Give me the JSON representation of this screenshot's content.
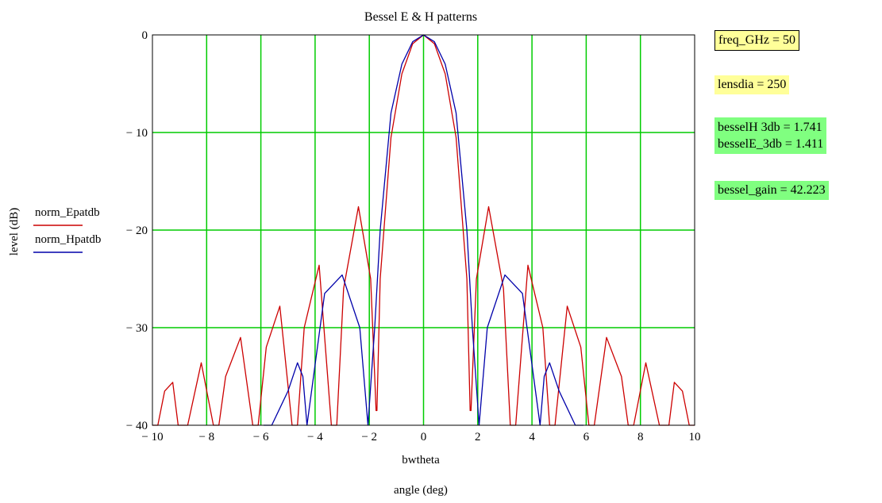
{
  "chart_data": {
    "type": "line",
    "title": "Bessel E & H  patterns",
    "xlabel": "bwtheta",
    "xlabel_secondary": "angle (deg)",
    "ylabel": "level (dB)",
    "xlim": [
      -10,
      10
    ],
    "ylim": [
      -40,
      0
    ],
    "xticks": [
      -10,
      -8,
      -6,
      -4,
      -2,
      0,
      2,
      4,
      6,
      8,
      10
    ],
    "yticks": [
      0,
      -10,
      -20,
      -30,
      -40
    ],
    "xtick_labels": [
      "− 10",
      "− 8",
      "− 6",
      "− 4",
      "− 2",
      "0",
      "2",
      "4",
      "6",
      "8",
      "10"
    ],
    "ytick_labels": [
      "0",
      "− 10",
      "− 20",
      "− 30",
      "− 40"
    ],
    "grid": true,
    "grid_color": "#00cc00",
    "legend_position": "left",
    "series": [
      {
        "name": "norm_Epatdb",
        "color": "#cc0000",
        "x": [
          -10,
          -9.8,
          -9.55,
          -9.25,
          -9.05,
          -8.7,
          -8.2,
          -7.75,
          -7.55,
          -7.3,
          -6.75,
          -6.3,
          -6.1,
          -5.8,
          -5.3,
          -4.85,
          -4.65,
          -4.4,
          -3.85,
          -3.4,
          -3.2,
          -2.95,
          -2.4,
          -1.95,
          -1.8,
          -1.75,
          -1.72,
          -1.6,
          -1.2,
          -0.8,
          -0.4,
          0,
          0.4,
          0.8,
          1.2,
          1.6,
          1.72,
          1.75,
          1.8,
          1.95,
          2.4,
          2.95,
          3.2,
          3.4,
          3.85,
          4.4,
          4.65,
          4.85,
          5.3,
          5.8,
          6.1,
          6.3,
          6.75,
          7.3,
          7.55,
          7.75,
          8.2,
          8.7,
          9.05,
          9.25,
          9.55,
          9.8,
          10
        ],
        "y": [
          -40,
          -40,
          -36.5,
          -35.6,
          -40,
          -40,
          -33.6,
          -40,
          -40,
          -35,
          -31.0,
          -40,
          -40,
          -32,
          -27.8,
          -40,
          -40,
          -30,
          -23.6,
          -40,
          -40,
          -26,
          -17.6,
          -25,
          -35,
          -38.5,
          -38.5,
          -25,
          -10.5,
          -4.0,
          -0.9,
          0,
          -0.9,
          -4.0,
          -10.5,
          -25,
          -38.5,
          -38.5,
          -35,
          -25,
          -17.6,
          -26,
          -40,
          -40,
          -23.6,
          -30,
          -40,
          -40,
          -27.8,
          -32,
          -40,
          -40,
          -31.0,
          -35,
          -40,
          -40,
          -33.6,
          -40,
          -40,
          -35.6,
          -36.5,
          -40,
          -40
        ]
      },
      {
        "name": "norm_Hpatdb",
        "color": "#0000aa",
        "x": [
          -5.9,
          -5.6,
          -5.0,
          -4.65,
          -4.45,
          -4.3,
          -3.65,
          -3.0,
          -2.35,
          -2.05,
          -1.8,
          -1.6,
          -1.2,
          -0.8,
          -0.4,
          0,
          0.4,
          0.8,
          1.2,
          1.6,
          1.8,
          2.05,
          2.35,
          3.0,
          3.65,
          4.3,
          4.45,
          4.65,
          5.0,
          5.6,
          5.9
        ],
        "y": [
          -40,
          -40,
          -36.5,
          -33.6,
          -35,
          -40,
          -26.5,
          -24.6,
          -30,
          -40,
          -30,
          -20,
          -8.0,
          -3.0,
          -0.7,
          0,
          -0.7,
          -3.0,
          -8.0,
          -20,
          -30,
          -40,
          -30,
          -24.6,
          -26.5,
          -40,
          -35,
          -33.6,
          -36.5,
          -40,
          -40
        ]
      }
    ]
  },
  "readouts": {
    "freq": "freq_GHz = 50",
    "lensdia": "lensdia = 250",
    "besselH": "besselH  3db = 1.741",
    "besselE": "besselE_3db = 1.411",
    "gain": "bessel_gain = 42.223"
  }
}
